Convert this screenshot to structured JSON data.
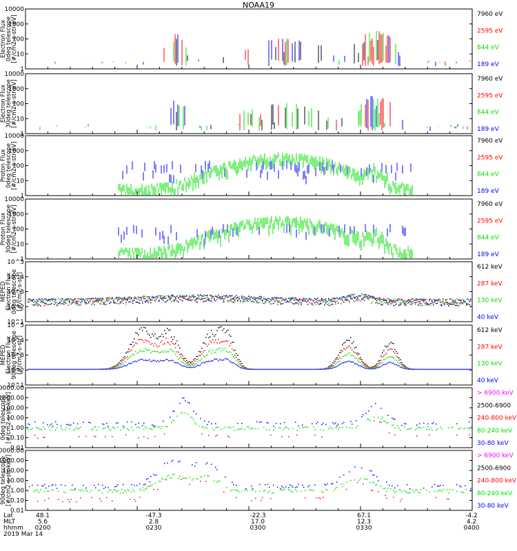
{
  "title": "NOAA19",
  "colors": {
    "black": "#000000",
    "red": "#ff0000",
    "green": "#00e000",
    "blue": "#0000ff",
    "magenta": "#ff00ff"
  },
  "footer": {
    "axis_labels": [
      "Lat",
      "MLT",
      "hhmm",
      "2019 Mar 14"
    ],
    "ticks": [
      {
        "lat": "48.1",
        "mlt": "5.6",
        "hhmm": "0200"
      },
      {
        "lat": "-47.3",
        "mlt": "2.8",
        "hhmm": "0230"
      },
      {
        "lat": "-22.3",
        "mlt": "17.0",
        "hhmm": "0300"
      },
      {
        "lat": "67.1",
        "mlt": "12.3",
        "hhmm": "0330"
      },
      {
        "lat": "-4.2",
        "mlt": "4.2",
        "hhmm": "0400"
      }
    ]
  },
  "chart_data": [
    {
      "type": "scatter",
      "ylabel": [
        "Electron Flux",
        "0deg telescope",
        "[#/cm2-s-str-eV]"
      ],
      "yscale": "log",
      "ylim": [
        1,
        10000
      ],
      "ytick_labels": [
        "10000",
        "1000",
        "100",
        "10",
        "1"
      ],
      "legend": [
        {
          "label": "7960 eV",
          "color": "black"
        },
        {
          "label": "2595 eV",
          "color": "red"
        },
        {
          "label": "844 eV",
          "color": "green"
        },
        {
          "label": "189 eV",
          "color": "blue"
        }
      ]
    },
    {
      "type": "scatter",
      "ylabel": [
        "Electron Flux",
        "30deg telescope",
        "[#/cm2-s-str-eV]"
      ],
      "yscale": "log",
      "ylim": [
        1,
        10000
      ],
      "ytick_labels": [
        "10000",
        "1000",
        "100",
        "10",
        "1"
      ],
      "legend": [
        {
          "label": "7960 eV",
          "color": "black"
        },
        {
          "label": "2595 eV",
          "color": "red"
        },
        {
          "label": "844 eV",
          "color": "green"
        },
        {
          "label": "189 eV",
          "color": "blue"
        }
      ]
    },
    {
      "type": "scatter",
      "ylabel": [
        "Proton Flux",
        "0deg telescope",
        "[#/cm2-s-str-eV]"
      ],
      "yscale": "log",
      "ylim": [
        1,
        10000
      ],
      "ytick_labels": [
        "10000",
        "1000",
        "100",
        "10",
        "1"
      ],
      "legend": [
        {
          "label": "7960 eV",
          "color": "black"
        },
        {
          "label": "2595 eV",
          "color": "red"
        },
        {
          "label": "844 eV",
          "color": "green"
        },
        {
          "label": "189 eV",
          "color": "blue"
        }
      ]
    },
    {
      "type": "scatter",
      "ylabel": [
        "Proton Flux",
        "30deg telescope",
        "[#/cm2-s-str-eV]"
      ],
      "yscale": "log",
      "ylim": [
        1,
        10000
      ],
      "ytick_labels": [
        "10000",
        "1000",
        "100",
        "10",
        "1"
      ],
      "legend": [
        {
          "label": "7960 eV",
          "color": "black"
        },
        {
          "label": "2595 eV",
          "color": "red"
        },
        {
          "label": "844 eV",
          "color": "green"
        },
        {
          "label": "189 eV",
          "color": "blue"
        }
      ]
    },
    {
      "type": "scatter",
      "ylabel": [
        "MEPED",
        "Electron Flux",
        "0deg telescope",
        "[#/cm2-s-str]"
      ],
      "yscale": "log",
      "ylim": [
        10,
        100000
      ],
      "ytick_labels": [
        "10^5",
        "10^4",
        "10^3",
        "10^2",
        "10^1"
      ],
      "legend": [
        {
          "label": "612 keV",
          "color": "black"
        },
        {
          "label": "287 keV",
          "color": "red"
        },
        {
          "label": "130 keV",
          "color": "green"
        },
        {
          "label": "40 keV",
          "color": "blue"
        }
      ]
    },
    {
      "type": "scatter",
      "ylabel": [
        "MEPED",
        "Electron Flux",
        "90deg telescope",
        "[#/cm2-s-str]"
      ],
      "yscale": "log",
      "ylim": [
        10,
        100000
      ],
      "ytick_labels": [
        "10^5",
        "10^4",
        "10^3",
        "10^2",
        "10^1"
      ],
      "legend": [
        {
          "label": "612 keV",
          "color": "black"
        },
        {
          "label": "287 keV",
          "color": "red"
        },
        {
          "label": "130 keV",
          "color": "green"
        },
        {
          "label": "40 keV",
          "color": "blue"
        }
      ]
    },
    {
      "type": "scatter",
      "ylabel": [
        "0deg telescope",
        "[#/cm2-s-str-keV]"
      ],
      "yscale": "log",
      "ylim": [
        0.01,
        10000
      ],
      "ytick_labels": [
        "10000.00",
        "1000.00",
        "100.00",
        "10.00",
        "1.00",
        "0.10",
        "0.01"
      ],
      "legend": [
        {
          "label": "> 6900 keV",
          "color": "magenta"
        },
        {
          "label": "2500-6900",
          "color": "black"
        },
        {
          "label": "240-800 keV",
          "color": "red"
        },
        {
          "label": "80-240 keV",
          "color": "green"
        },
        {
          "label": "30-80 keV",
          "color": "blue"
        }
      ]
    },
    {
      "type": "scatter",
      "ylabel": [
        "90deg telescope",
        "[#/cm2-s-str-keV]"
      ],
      "yscale": "log",
      "ylim": [
        0.01,
        10000
      ],
      "ytick_labels": [
        "10000.00",
        "1000.00",
        "100.00",
        "10.00",
        "1.00",
        "0.10",
        "0.01"
      ],
      "legend": [
        {
          "label": "> 6900 keV",
          "color": "magenta"
        },
        {
          "label": "2500-6900",
          "color": "black"
        },
        {
          "label": "240-800 keV",
          "color": "red"
        },
        {
          "label": "80-240 keV",
          "color": "green"
        },
        {
          "label": "30-80 keV",
          "color": "blue"
        }
      ]
    }
  ]
}
